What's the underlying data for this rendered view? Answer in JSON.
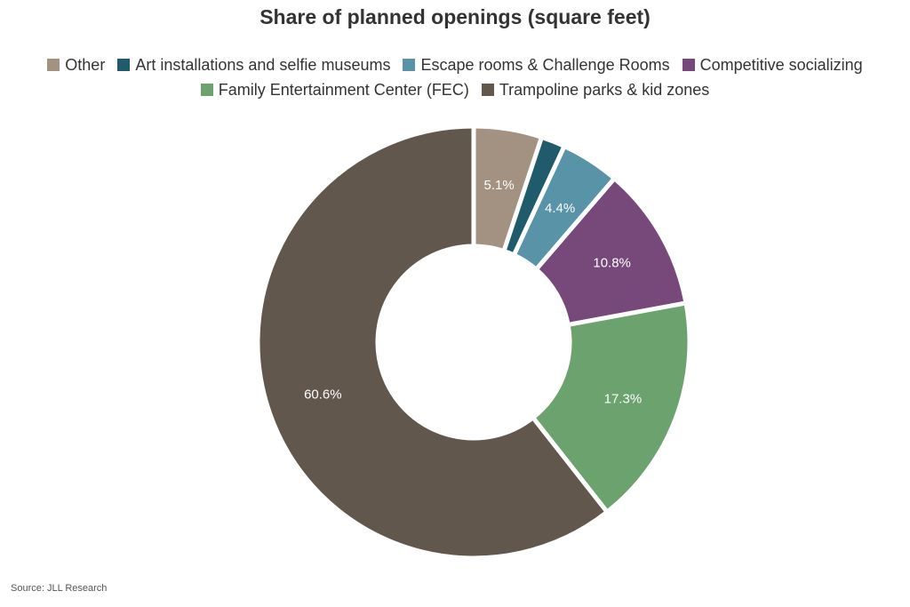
{
  "chart_data": {
    "type": "pie",
    "title": "Share of planned openings (square feet)",
    "legend_position": "top",
    "categories": [
      "Other",
      "Art installations and selfie museums",
      "Escape rooms & Challenge Rooms",
      "Competitive socializing",
      "Family Entertainment Center (FEC)",
      "Trampoline parks & kid zones"
    ],
    "values": [
      5.1,
      1.8,
      4.4,
      10.8,
      17.3,
      60.6
    ],
    "data_labels": [
      "5.1%",
      "",
      "4.4%",
      "10.8%",
      "17.3%",
      "60.6%"
    ],
    "colors": [
      "#a39282",
      "#1f5b6b",
      "#5893a7",
      "#77497a",
      "#6ba26e",
      "#62574d"
    ]
  },
  "source": "Source: JLL Research"
}
